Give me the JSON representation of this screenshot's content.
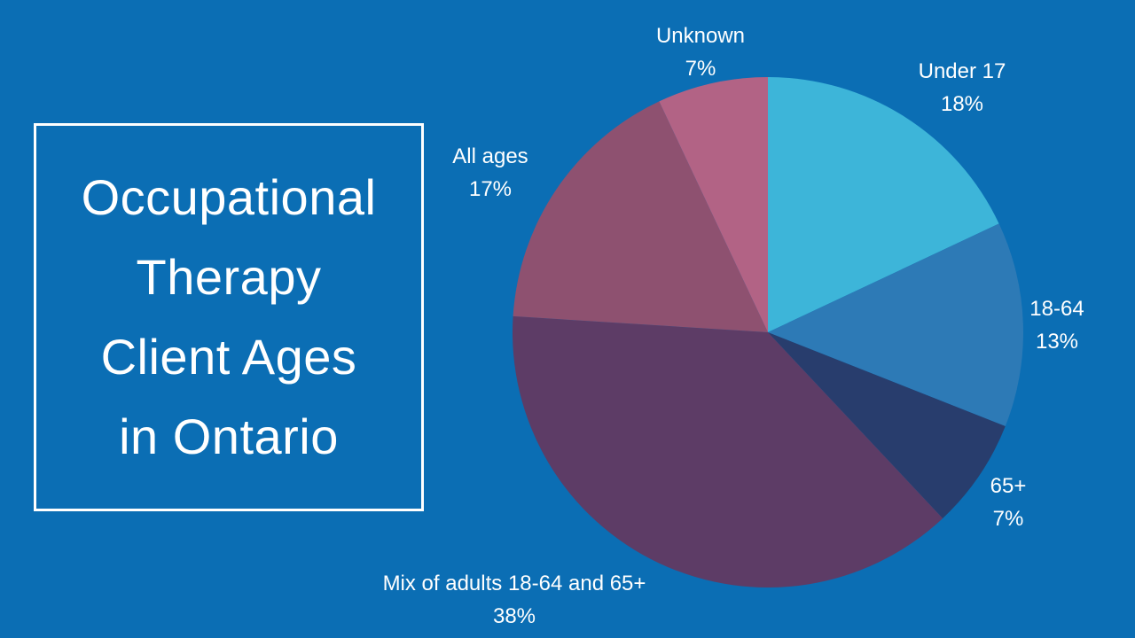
{
  "background_color": "#0b6eb4",
  "text_color": "#ffffff",
  "title": {
    "text": "Occupational Therapy Client Ages in Ontario",
    "lines": [
      "Occupational",
      "Therapy",
      "Client Ages",
      "in Ontario"
    ]
  },
  "chart_data": {
    "type": "pie",
    "title": "Occupational Therapy Client Ages in Ontario",
    "start_angle_deg": -90,
    "direction": "clockwise",
    "legend_position": "none",
    "labels_style": "outside, name over percent",
    "segments": [
      {
        "label": "Under 17",
        "value": 18,
        "pct_label": "18%",
        "color": "#3db5d9"
      },
      {
        "label": "18-64",
        "value": 13,
        "pct_label": "13%",
        "color": "#2d7ab6"
      },
      {
        "label": "65+",
        "value": 7,
        "pct_label": "7%",
        "color": "#283d6d"
      },
      {
        "label": "Mix of adults 18-64 and 65+",
        "value": 38,
        "pct_label": "38%",
        "color": "#5d3c66"
      },
      {
        "label": "All ages",
        "value": 17,
        "pct_label": "17%",
        "color": "#8e5170"
      },
      {
        "label": "Unknown",
        "value": 7,
        "pct_label": "7%",
        "color": "#b26385"
      }
    ]
  }
}
